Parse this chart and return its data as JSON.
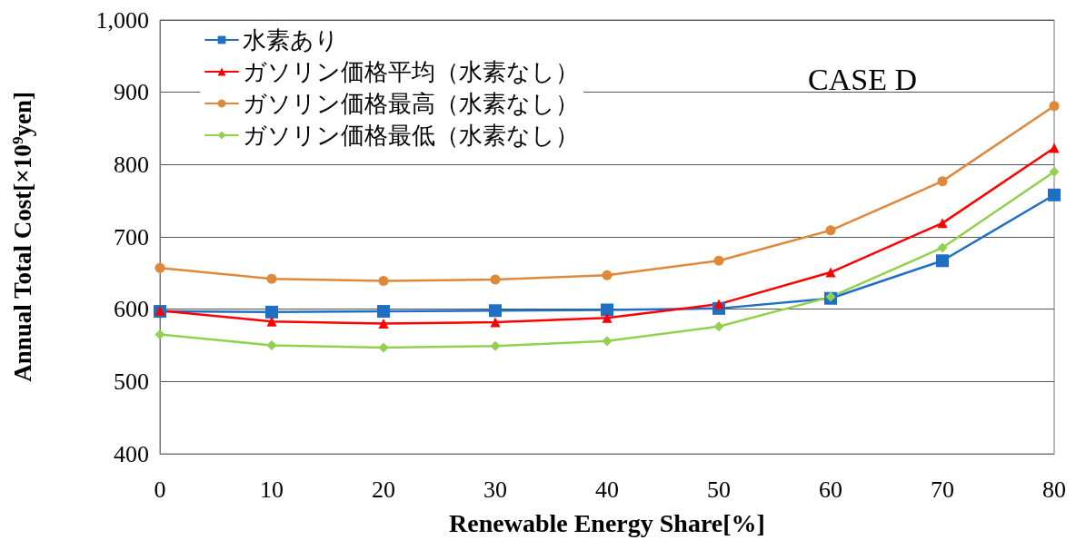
{
  "chart_data": {
    "type": "line",
    "xlabel": "Renewable Energy Share[%]",
    "ylabel": "Annual Total Cost[×10$^{9}$yen]",
    "x": [
      0,
      10,
      20,
      30,
      40,
      50,
      60,
      70,
      80
    ],
    "xlim": [
      0,
      80
    ],
    "xticks": [
      0,
      10,
      20,
      30,
      40,
      50,
      60,
      70,
      80
    ],
    "ylim": [
      400,
      1000
    ],
    "yticks": [
      400,
      500,
      600,
      700,
      800,
      900,
      {
        "value": 1000,
        "label": "1,000"
      }
    ],
    "grid": "y",
    "legend": "top left",
    "annotations": [
      "CASE D"
    ],
    "series": [
      {
        "name": "水素あり",
        "color": "#1f6fc5",
        "marker": "square",
        "values": [
          597,
          596,
          597,
          598,
          599,
          601,
          615,
          667,
          758
        ]
      },
      {
        "name": "ガソリン価格平均（水素なし）",
        "color": "#ff0000",
        "marker": "triangle",
        "values": [
          598,
          583,
          580,
          582,
          588,
          607,
          651,
          719,
          823
        ]
      },
      {
        "name": "ガソリン価格最高（水素なし）",
        "color": "#e0883a",
        "marker": "circle",
        "values": [
          657,
          642,
          639,
          641,
          647,
          667,
          709,
          777,
          881
        ]
      },
      {
        "name": "ガソリン価格最低（水素なし）",
        "color": "#92d050",
        "marker": "diamond",
        "values": [
          565,
          550,
          547,
          549,
          556,
          576,
          617,
          685,
          790
        ]
      }
    ]
  }
}
